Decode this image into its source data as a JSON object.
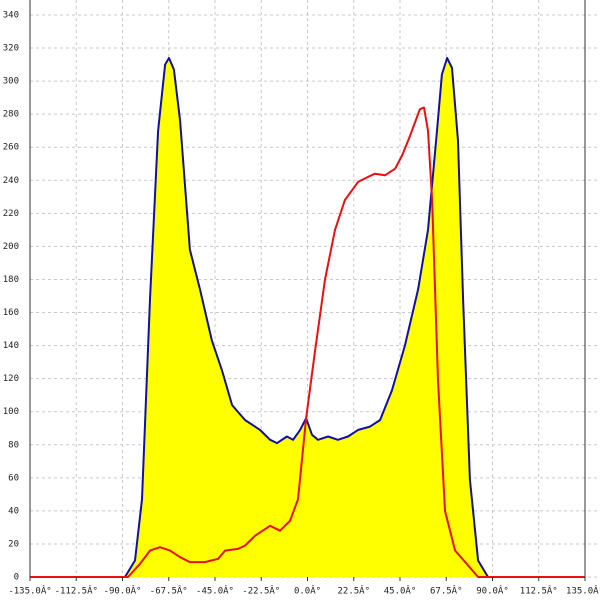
{
  "chart_data": {
    "type": "area",
    "xlim": [
      -135,
      135
    ],
    "ylim": [
      0,
      340
    ],
    "xticks": [
      {
        "value": -135,
        "label": "-135.0Â°"
      },
      {
        "value": -112.5,
        "label": "-112.5Â°"
      },
      {
        "value": -90,
        "label": "-90.0Â°"
      },
      {
        "value": -67.5,
        "label": "-67.5Â°"
      },
      {
        "value": -45,
        "label": "-45.0Â°"
      },
      {
        "value": -22.5,
        "label": "-22.5Â°"
      },
      {
        "value": 0,
        "label": "0.0Â°"
      },
      {
        "value": 22.5,
        "label": "22.5Â°"
      },
      {
        "value": 45,
        "label": "45.0Â°"
      },
      {
        "value": 67.5,
        "label": "67.5Â°"
      },
      {
        "value": 90,
        "label": "90.0Â°"
      },
      {
        "value": 112.5,
        "label": "112.5Â°"
      },
      {
        "value": 135,
        "label": "135.0Â°"
      }
    ],
    "yticks": [
      0,
      20,
      40,
      60,
      80,
      100,
      120,
      140,
      160,
      180,
      200,
      220,
      240,
      260,
      280,
      300,
      320,
      340
    ],
    "grid": true,
    "fill_color": "#ffff00",
    "series": [
      {
        "color": "#1010a8",
        "filled": true,
        "x": [
          -135,
          -88.8,
          -83.9,
          -80.5,
          -76.6,
          -72.7,
          -69.3,
          -67.4,
          -65,
          -62,
          -57.2,
          -52.3,
          -46.5,
          -41.6,
          -36.7,
          -30.4,
          -23.1,
          -18.2,
          -14.8,
          -10,
          -7,
          -3.6,
          -0.7,
          2.2,
          5.1,
          10,
          14.8,
          19.7,
          24.6,
          30.4,
          35.3,
          41.1,
          47.4,
          53.8,
          58.6,
          63,
          65.4,
          67.9,
          70.3,
          73.2,
          75.7,
          79,
          83,
          87.8,
          135
        ],
        "values": [
          0,
          0,
          10,
          47,
          168,
          270,
          310,
          314,
          307,
          276,
          198,
          174,
          143,
          125,
          104,
          95,
          89,
          83,
          81,
          85,
          83,
          89,
          96,
          86,
          83,
          85,
          83,
          85,
          89,
          91,
          95,
          113,
          140,
          174,
          210,
          270,
          304,
          314,
          308,
          264,
          168,
          59,
          10,
          0,
          0
        ]
      },
      {
        "color": "#e81010",
        "filled": false,
        "x": [
          -135,
          -87.3,
          -81.5,
          -76.6,
          -71.8,
          -66.9,
          -62,
          -57.2,
          -49.9,
          -43.5,
          -40.1,
          -33.8,
          -30.4,
          -25.5,
          -18.2,
          -13.4,
          -8.5,
          -4.6,
          -0.7,
          3.7,
          8.5,
          13.4,
          18.2,
          24.6,
          29.4,
          32.8,
          37.7,
          42.6,
          46,
          49.9,
          54.7,
          56.7,
          58.6,
          60.6,
          63.5,
          66.9,
          71.8,
          76.7,
          83,
          135
        ],
        "values": [
          0,
          0,
          8,
          16,
          18,
          16,
          12,
          9,
          9,
          11,
          16,
          17,
          19,
          25,
          31,
          28,
          34,
          47,
          96,
          137,
          180,
          210,
          228,
          239,
          242,
          244,
          243,
          247,
          255,
          267,
          283,
          284,
          270,
          228,
          119,
          40,
          16,
          9,
          0,
          0
        ]
      }
    ]
  }
}
